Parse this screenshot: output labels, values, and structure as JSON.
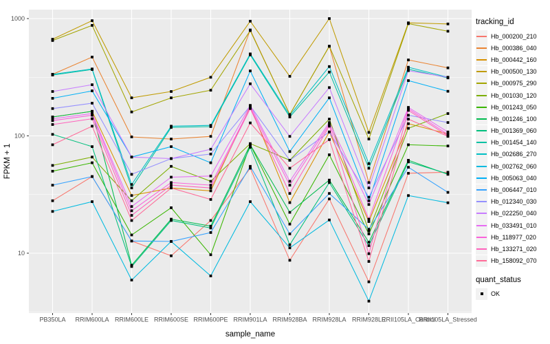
{
  "chart_data": {
    "type": "line",
    "xlabel": "sample_name",
    "ylabel": "FPKM + 1",
    "y_scale": "log10",
    "y_ticks": [
      10,
      100,
      1000
    ],
    "y_tick_labels": [
      "10",
      "100",
      "1000"
    ],
    "y_minor_ticks": [
      3.162,
      31.62,
      316.2
    ],
    "ylim": [
      3.1,
      1190
    ],
    "panel_bg": "#EBEBEB",
    "grid_color": "#FFFFFF",
    "point_color": "#000000",
    "tick_color": "#333333",
    "categories": [
      "PB350LA",
      "RRIM600LA",
      "RRIM600LE",
      "RRIM600SE",
      "RRIM600PE",
      "RRIM901LA",
      "RRIM928BA",
      "RRIM928LA",
      "RRIM928LE",
      "RRII105LA_Control",
      "RRII105LA_Stressed"
    ],
    "legend": {
      "color_title": "tracking_id",
      "shape_title": "quant_status",
      "shape_items": [
        {
          "label": "OK"
        }
      ]
    },
    "series": [
      {
        "name": "Hb_000200_210",
        "color": "#F8766D",
        "values": [
          28,
          45,
          12.7,
          9.5,
          19,
          53,
          8.7,
          29,
          5.7,
          48,
          49
        ]
      },
      {
        "name": "Hb_000386_040",
        "color": "#EA8331",
        "values": [
          335,
          470,
          98,
          94,
          99,
          800,
          152,
          580,
          40,
          444,
          380
        ]
      },
      {
        "name": "Hb_000442_160",
        "color": "#D89000",
        "values": [
          145,
          162,
          31,
          36,
          34,
          178,
          27,
          108,
          18.6,
          127,
          104
        ]
      },
      {
        "name": "Hb_000500_130",
        "color": "#C09B00",
        "values": [
          667,
          960,
          211,
          239,
          316,
          950,
          322,
          1000,
          107,
          920,
          900
        ]
      },
      {
        "name": "Hb_000975_290",
        "color": "#A3A500",
        "values": [
          650,
          875,
          160,
          211,
          245,
          790,
          152,
          582,
          94,
          905,
          780
        ]
      },
      {
        "name": "Hb_001030_120",
        "color": "#7CAE00",
        "values": [
          56,
          66,
          28,
          55,
          41,
          86,
          62,
          139,
          15.5,
          116,
          155
        ]
      },
      {
        "name": "Hb_001243_050",
        "color": "#39B600",
        "values": [
          50,
          59,
          14.3,
          24.4,
          9.7,
          84,
          17.7,
          69,
          14.6,
          84,
          82
        ]
      },
      {
        "name": "Hb_001246_100",
        "color": "#00BB4E",
        "values": [
          145,
          162,
          7.9,
          19.5,
          17,
          84,
          22.3,
          42,
          12.4,
          62,
          47
        ]
      },
      {
        "name": "Hb_001369_060",
        "color": "#00BF7D",
        "values": [
          103,
          81,
          7.7,
          19,
          16.4,
          80,
          11.8,
          40,
          11.6,
          60,
          47.5
        ]
      },
      {
        "name": "Hb_001454_140",
        "color": "#00C1A3",
        "values": [
          330,
          368,
          36,
          118,
          120,
          490,
          145,
          350,
          53,
          370,
          312
        ]
      },
      {
        "name": "Hb_002686_270",
        "color": "#00BFC4",
        "values": [
          335,
          372,
          38.5,
          121,
          123,
          500,
          150,
          390,
          58,
          385,
          316
        ]
      },
      {
        "name": "Hb_002762_060",
        "color": "#00BAE0",
        "values": [
          22.7,
          27.5,
          5.9,
          12.6,
          6.4,
          27.5,
          11.1,
          19.2,
          3.9,
          31,
          26.9
        ]
      },
      {
        "name": "Hb_005063_040",
        "color": "#00B0F6",
        "values": [
          209,
          242,
          66,
          81,
          59,
          358,
          73.5,
          211,
          28,
          296,
          240
        ]
      },
      {
        "name": "Hb_006447_010",
        "color": "#35A2FF",
        "values": [
          38,
          45,
          12.7,
          12.6,
          15,
          55,
          14.6,
          32.3,
          16,
          54,
          33
        ]
      },
      {
        "name": "Hb_012340_030",
        "color": "#9590FF",
        "values": [
          171,
          190,
          47,
          64,
          70,
          180,
          62,
          108,
          30,
          150,
          130
        ]
      },
      {
        "name": "Hb_022250_040",
        "color": "#C77CFF",
        "values": [
          239,
          273,
          66,
          64,
          77,
          278,
          99,
          258,
          36,
          360,
          316
        ]
      },
      {
        "name": "Hb_033491_010",
        "color": "#E76BF3",
        "values": [
          140,
          155,
          25,
          44.5,
          45.5,
          182,
          41,
          130,
          26,
          175,
          108
        ]
      },
      {
        "name": "Hb_118977_020",
        "color": "#FA62DB",
        "values": [
          135,
          150,
          23,
          40,
          38,
          175,
          38,
          125,
          19.5,
          170,
          103
        ]
      },
      {
        "name": "Hb_133271_020",
        "color": "#FF62BC",
        "values": [
          125,
          140,
          21,
          38,
          36,
          171,
          32.3,
          121,
          9.9,
          165,
          100
        ]
      },
      {
        "name": "Hb_158092_070",
        "color": "#FF6A98",
        "values": [
          84,
          121,
          19,
          36,
          28.7,
          129,
          53,
          93,
          8.5,
          139,
          99
        ]
      }
    ]
  }
}
